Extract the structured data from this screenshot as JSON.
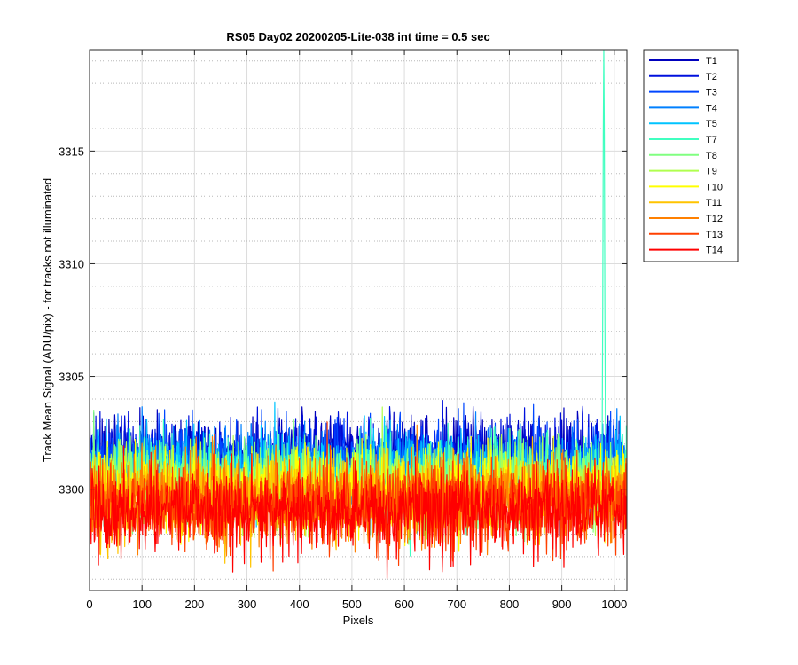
{
  "chart_data": {
    "type": "line",
    "title": "RS05 Day02 20200205-Lite-038 int time = 0.5 sec",
    "xlabel": "Pixels",
    "ylabel": "Track Mean Signal (ADU/pix) - for tracks not illuminated",
    "xlim": [
      0,
      1024
    ],
    "ylim": [
      3295.5,
      3319.5
    ],
    "x_ticks": [
      0,
      100,
      200,
      300,
      400,
      500,
      600,
      700,
      800,
      900,
      1000
    ],
    "y_ticks": [
      3300,
      3305,
      3310,
      3315
    ],
    "grid": true,
    "minor_grid": true,
    "legend_position": "outside-right",
    "n_pixels": 1024,
    "series": [
      {
        "name": "T1",
        "color": "#0000bd",
        "mean": 3301.4,
        "std": 0.9
      },
      {
        "name": "T2",
        "color": "#0010dd",
        "mean": 3301.3,
        "std": 0.9
      },
      {
        "name": "T3",
        "color": "#0046ff",
        "mean": 3301.1,
        "std": 0.9
      },
      {
        "name": "T4",
        "color": "#0080ff",
        "mean": 3300.9,
        "std": 0.9
      },
      {
        "name": "T5",
        "color": "#00c4ff",
        "mean": 3300.7,
        "std": 0.9
      },
      {
        "name": "T7",
        "color": "#40ffc0",
        "mean": 3300.5,
        "std": 0.9,
        "spike": {
          "x": 980,
          "peak": 3319.5
        }
      },
      {
        "name": "T8",
        "color": "#80ff80",
        "mean": 3300.3,
        "std": 0.9
      },
      {
        "name": "T9",
        "color": "#b0ff4f",
        "mean": 3300.1,
        "std": 0.9
      },
      {
        "name": "T10",
        "color": "#ffff00",
        "mean": 3299.9,
        "std": 0.9
      },
      {
        "name": "T11",
        "color": "#ffc400",
        "mean": 3299.7,
        "std": 0.9
      },
      {
        "name": "T12",
        "color": "#ff8000",
        "mean": 3299.5,
        "std": 0.95
      },
      {
        "name": "T13",
        "color": "#ff4000",
        "mean": 3299.3,
        "std": 0.95
      },
      {
        "name": "T14",
        "color": "#ff0000",
        "mean": 3299.1,
        "std": 0.95
      }
    ]
  }
}
